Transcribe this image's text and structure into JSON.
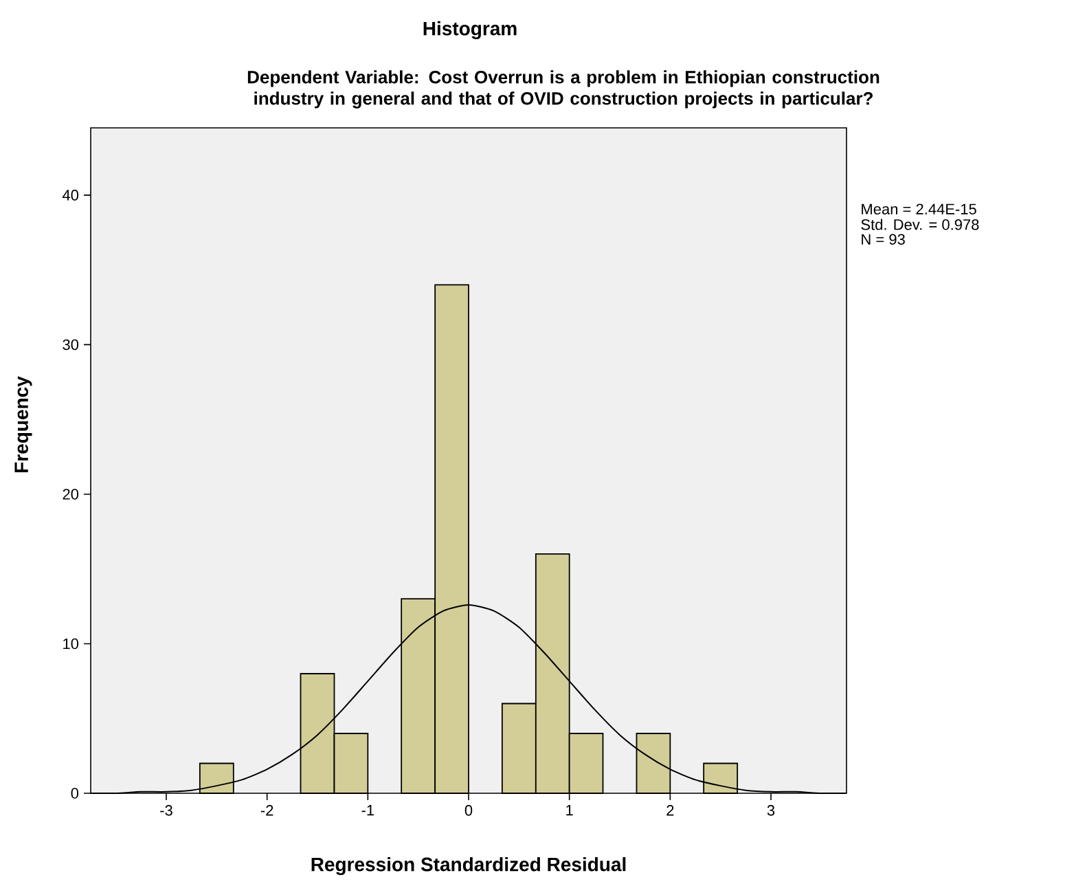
{
  "chart_data": {
    "type": "histogram",
    "title": "Histogram",
    "subtitle": "Dependent Variable: Cost Overrun is a problem in Ethiopian construction industry in general and that of OVID construction projects in particular?",
    "xlabel": "Regression Standardized Residual",
    "ylabel": "Frequency",
    "bins": [
      -2.667,
      -2.333,
      -2,
      -1.667,
      -1.333,
      -1,
      -0.667,
      -0.333,
      0,
      0.333,
      0.667,
      1,
      1.333,
      1.667,
      2,
      2.333,
      2.667
    ],
    "values": [
      2,
      0,
      0,
      8,
      4,
      0,
      13,
      34,
      0,
      6,
      16,
      4,
      0,
      4,
      0,
      2
    ],
    "color": "#d3ce97",
    "series": [
      {
        "type": "line",
        "color": "#000000",
        "x": [
          -3.75,
          -3.5,
          -3.25,
          -3,
          -2.75,
          -2.5,
          -2.25,
          -2,
          -1.75,
          -1.5,
          -1.25,
          -1,
          -0.75,
          -0.5,
          -0.25,
          0,
          0.25,
          0.5,
          0.75,
          1,
          1.25,
          1.5,
          1.75,
          2,
          2.25,
          2.5,
          2.75,
          3,
          3.25,
          3.5,
          3.75
        ],
        "values": [
          0,
          0,
          0.1,
          0.1,
          0.2,
          0.5,
          0.9,
          1.6,
          2.6,
          3.9,
          5.6,
          7.5,
          9.4,
          11.1,
          12.2,
          12.6,
          12.2,
          11.1,
          9.4,
          7.5,
          5.6,
          3.9,
          2.6,
          1.6,
          0.9,
          0.5,
          0.2,
          0.1,
          0.1,
          0,
          0
        ]
      }
    ],
    "xlim": [
      -3.75,
      3.75
    ],
    "ylim": [
      0,
      44.5
    ],
    "xticks": [
      -3,
      -2,
      -1,
      0,
      1,
      2,
      3
    ],
    "yticks": [
      0,
      10,
      20,
      30,
      40
    ],
    "annotations": [
      "Mean = 2.44E-15",
      "Std. Dev. = 0.978",
      "N = 93"
    ]
  }
}
